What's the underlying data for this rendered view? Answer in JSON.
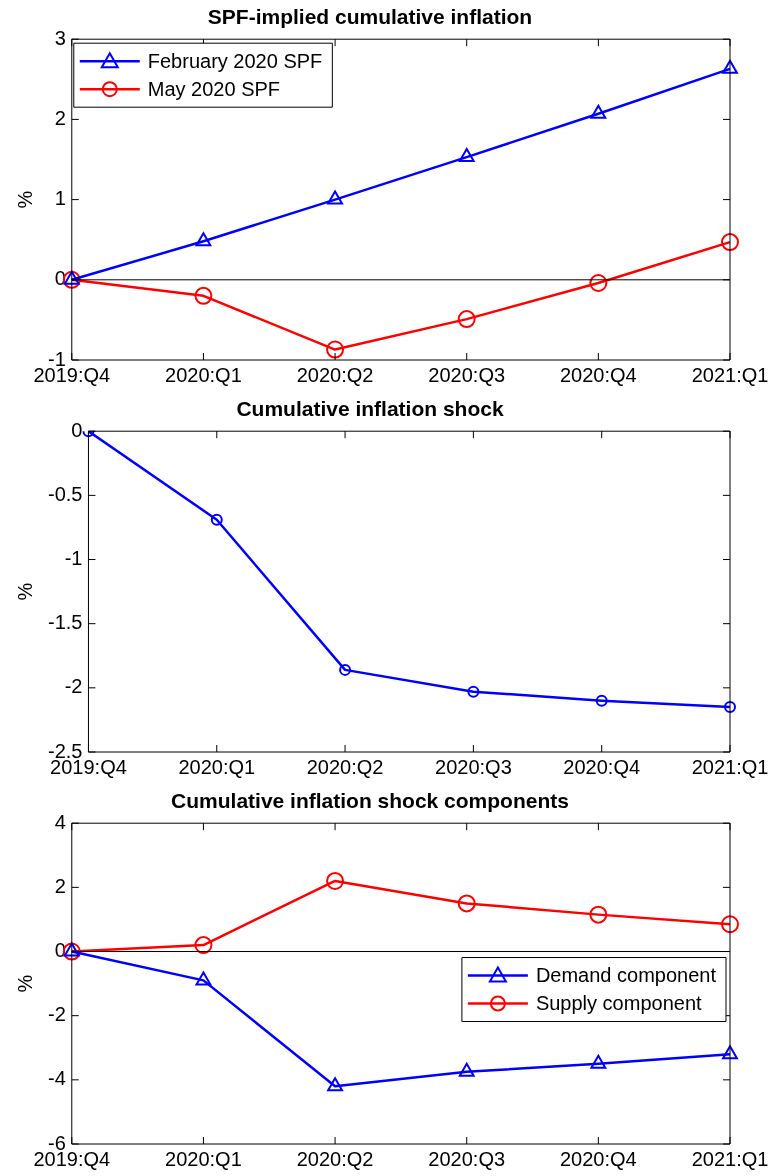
{
  "chart_data": [
    {
      "type": "line",
      "title": "SPF-implied cumulative inflation",
      "ylabel": "%",
      "categories": [
        "2019:Q4",
        "2020:Q1",
        "2020:Q2",
        "2020:Q3",
        "2020:Q4",
        "2021:Q1"
      ],
      "series": [
        {
          "name": "February 2020 SPF",
          "color": "#0000ff",
          "marker": "triangle",
          "values": [
            0,
            0.48,
            1.0,
            1.53,
            2.07,
            2.63
          ]
        },
        {
          "name": "May 2020 SPF",
          "color": "#ff0000",
          "marker": "circle",
          "values": [
            0,
            -0.2,
            -0.87,
            -0.49,
            -0.04,
            0.47
          ]
        }
      ],
      "ylim": [
        -1,
        3
      ],
      "yticks": [
        -1,
        0,
        1,
        2,
        3
      ],
      "ref_lines": [
        {
          "axis": "y",
          "value": 0,
          "color": "#000000"
        }
      ],
      "legend": "top left",
      "grid": false,
      "line_style": "solid"
    },
    {
      "type": "line",
      "title": "Cumulative inflation shock",
      "ylabel": "%",
      "categories": [
        "2019:Q4",
        "2020:Q1",
        "2020:Q2",
        "2020:Q3",
        "2020:Q4",
        "2021:Q1"
      ],
      "series": [
        {
          "color": "#0000ff",
          "marker": "circle",
          "values": [
            0,
            -0.69,
            -1.86,
            -2.03,
            -2.1,
            -2.15
          ]
        }
      ],
      "ylim": [
        -2.5,
        0
      ],
      "yticks": [
        -2.5,
        -2,
        -1.5,
        -1,
        -0.5,
        0
      ],
      "legend": false,
      "grid": false,
      "line_style": "solid"
    },
    {
      "type": "line",
      "title": "Cumulative inflation shock components",
      "ylabel": "%",
      "categories": [
        "2019:Q4",
        "2020:Q1",
        "2020:Q2",
        "2020:Q3",
        "2020:Q4",
        "2021:Q1"
      ],
      "series": [
        {
          "name": "Demand component",
          "color": "#0000ff",
          "marker": "triangle",
          "values": [
            0,
            -0.9,
            -4.2,
            -3.75,
            -3.5,
            -3.2
          ]
        },
        {
          "name": "Supply component",
          "color": "#ff0000",
          "marker": "circle",
          "values": [
            0,
            0.2,
            2.2,
            1.5,
            1.15,
            0.85
          ]
        }
      ],
      "ylim": [
        -6,
        4
      ],
      "yticks": [
        -6,
        -4,
        -2,
        0,
        2,
        4
      ],
      "ref_lines": [
        {
          "axis": "y",
          "value": 0,
          "color": "#000000"
        }
      ],
      "legend": "right",
      "grid": false,
      "line_style": "solid"
    }
  ]
}
